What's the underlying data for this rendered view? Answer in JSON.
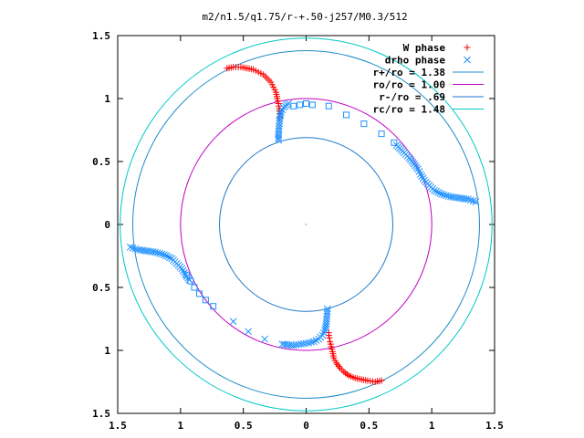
{
  "chart_data": {
    "type": "scatter",
    "title": "m2/n1.5/q1.75/r-+.50-j257/M0.3/512",
    "xlabel": "",
    "ylabel": "",
    "xlim": [
      -1.5,
      1.5
    ],
    "ylim": [
      -1.5,
      1.5
    ],
    "x_ticks": [
      -1.5,
      -1,
      -0.5,
      0,
      0.5,
      1,
      1.5
    ],
    "x_tick_labels": [
      "1.5",
      "1",
      "0.5",
      "0",
      "0.5",
      "1",
      "1.5"
    ],
    "y_ticks": [
      1.5,
      1,
      0.5,
      0,
      -0.5,
      -1,
      -1.5
    ],
    "y_tick_labels": [
      "1.5",
      "1",
      "0.5",
      "0",
      "0.5",
      "1",
      "1.5"
    ],
    "grid": false,
    "legend_position": "top-right",
    "legend": [
      {
        "label": "W phase",
        "symbol": "+",
        "color": "#ff0000"
      },
      {
        "label": "drho phase",
        "symbol": "x",
        "color": "#1e90ff"
      },
      {
        "label": "r+/ro = 1.38",
        "symbol": "line",
        "color": "#1e8cc8"
      },
      {
        "label": "ro/ro = 1.00",
        "symbol": "line",
        "color": "#c000c0"
      },
      {
        "label": "r-/ro = .69",
        "symbol": "line",
        "color": "#1e78c8"
      },
      {
        "label": "rc/ro = 1.48",
        "symbol": "line",
        "color": "#00c8c8"
      }
    ],
    "circles": [
      {
        "name": "r+/ro",
        "radius": 1.38,
        "color": "#1e8cc8"
      },
      {
        "name": "ro/ro",
        "radius": 1.0,
        "color": "#c000c0"
      },
      {
        "name": "r-/ro",
        "radius": 0.69,
        "color": "#1e78c8"
      },
      {
        "name": "rc/ro",
        "radius": 1.48,
        "color": "#00c8c8"
      }
    ],
    "series": [
      {
        "name": "W phase",
        "marker": "+",
        "color": "#ff0000",
        "points": [
          [
            -0.63,
            1.24
          ],
          [
            -0.58,
            1.25
          ],
          [
            -0.52,
            1.25
          ],
          [
            -0.47,
            1.24
          ],
          [
            -0.42,
            1.23
          ],
          [
            -0.38,
            1.21
          ],
          [
            -0.34,
            1.19
          ],
          [
            -0.31,
            1.16
          ],
          [
            -0.28,
            1.13
          ],
          [
            -0.26,
            1.09
          ],
          [
            -0.24,
            1.05
          ],
          [
            -0.23,
            1.0
          ],
          [
            -0.22,
            0.96
          ],
          [
            -0.215,
            0.92
          ],
          [
            -0.21,
            0.88
          ],
          [
            -0.21,
            0.85
          ],
          [
            0.6,
            -1.24
          ],
          [
            0.55,
            -1.25
          ],
          [
            0.49,
            -1.24
          ],
          [
            0.44,
            -1.23
          ],
          [
            0.39,
            -1.22
          ],
          [
            0.34,
            -1.2
          ],
          [
            0.3,
            -1.17
          ],
          [
            0.27,
            -1.14
          ],
          [
            0.24,
            -1.1
          ],
          [
            0.22,
            -1.06
          ],
          [
            0.21,
            -1.01
          ],
          [
            0.2,
            -0.97
          ],
          [
            0.19,
            -0.93
          ],
          [
            0.185,
            -0.9
          ],
          [
            0.18,
            -0.88
          ],
          [
            0.18,
            -0.86
          ]
        ]
      },
      {
        "name": "drho phase (x)",
        "marker": "x",
        "color": "#1e90ff",
        "points": [
          [
            -1.4,
            -0.18
          ],
          [
            -1.34,
            -0.2
          ],
          [
            -1.27,
            -0.21
          ],
          [
            -1.2,
            -0.22
          ],
          [
            -1.13,
            -0.24
          ],
          [
            -1.07,
            -0.27
          ],
          [
            -1.03,
            -0.31
          ],
          [
            -0.99,
            -0.35
          ],
          [
            -0.96,
            -0.4
          ],
          [
            -0.93,
            -0.44
          ],
          [
            -0.58,
            -0.77
          ],
          [
            -0.46,
            -0.85
          ],
          [
            -0.33,
            -0.91
          ],
          [
            -0.19,
            -0.95
          ],
          [
            -0.1,
            -0.96
          ],
          [
            -0.04,
            -0.95
          ],
          [
            0.02,
            -0.94
          ],
          [
            0.06,
            -0.93
          ],
          [
            0.1,
            -0.91
          ],
          [
            0.13,
            -0.88
          ],
          [
            0.15,
            -0.84
          ],
          [
            0.16,
            -0.79
          ],
          [
            0.165,
            -0.73
          ],
          [
            0.17,
            -0.67
          ],
          [
            1.35,
            0.18
          ],
          [
            1.29,
            0.2
          ],
          [
            1.22,
            0.21
          ],
          [
            1.15,
            0.22
          ],
          [
            1.08,
            0.24
          ],
          [
            1.02,
            0.27
          ],
          [
            0.98,
            0.31
          ],
          [
            0.94,
            0.35
          ],
          [
            0.91,
            0.4
          ],
          [
            0.89,
            0.44
          ],
          [
            0.86,
            0.48
          ],
          [
            0.82,
            0.53
          ],
          [
            0.78,
            0.57
          ],
          [
            0.72,
            0.63
          ],
          [
            -0.14,
            0.96
          ],
          [
            -0.18,
            0.93
          ],
          [
            -0.2,
            0.89
          ],
          [
            -0.21,
            0.84
          ],
          [
            -0.215,
            0.78
          ],
          [
            -0.22,
            0.72
          ],
          [
            -0.22,
            0.67
          ]
        ]
      },
      {
        "name": "drho phase (square)",
        "marker": "square",
        "color": "#1e90ff",
        "points": [
          [
            -0.95,
            -0.4
          ],
          [
            -0.92,
            -0.45
          ],
          [
            -0.89,
            -0.5
          ],
          [
            -0.85,
            -0.55
          ],
          [
            -0.8,
            -0.6
          ],
          [
            -0.74,
            -0.65
          ],
          [
            -0.1,
            0.94
          ],
          [
            -0.05,
            0.95
          ],
          [
            0.0,
            0.96
          ],
          [
            0.05,
            0.95
          ],
          [
            0.18,
            0.94
          ],
          [
            0.32,
            0.87
          ],
          [
            0.46,
            0.8
          ],
          [
            0.6,
            0.72
          ],
          [
            0.7,
            0.65
          ]
        ]
      }
    ]
  }
}
